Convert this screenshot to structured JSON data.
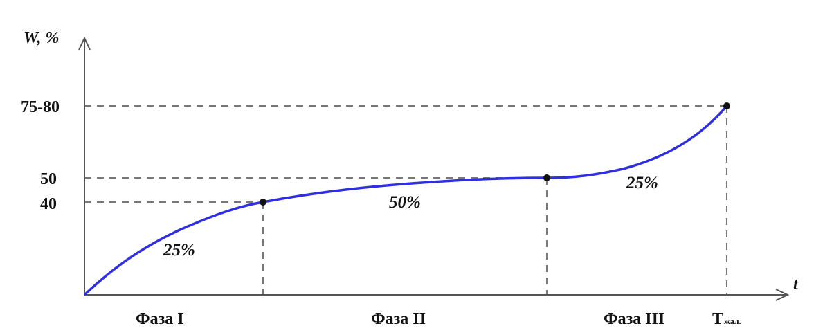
{
  "chart_data": {
    "type": "line",
    "ylabel": "W, %",
    "xlabel": "t",
    "y_ticks": [
      "75-80",
      "50",
      "40"
    ],
    "x_labels": [
      "Фаза I",
      "Фаза II",
      "Фаза III"
    ],
    "t_end_label": {
      "main": "T",
      "sub": "жал."
    },
    "phase_percent_labels": [
      "25%",
      "50%",
      "25%"
    ],
    "x": [
      0,
      1,
      2,
      3
    ],
    "y": [
      0,
      40,
      50,
      77.5
    ],
    "key_points": [
      {
        "x": 1,
        "y": 40
      },
      {
        "x": 2,
        "y": 50
      },
      {
        "x": 3,
        "y": 77.5
      }
    ],
    "line_color": "#2f2fe0",
    "grid": false,
    "guide_lines": "dashed"
  }
}
